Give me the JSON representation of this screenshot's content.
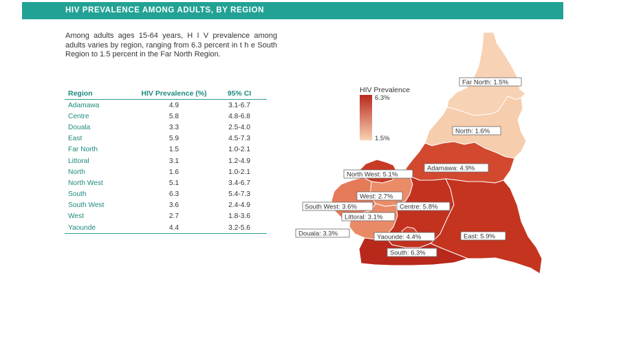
{
  "header": {
    "title": "HIV PREVALENCE AMONG ADULTS, BY REGION"
  },
  "intro": {
    "text": "Among adults ages 15-64 years, H I V prevalence among adults varies by region, ranging from 6.3 percent in t h e South Region to 1.5 percent in the Far North Region."
  },
  "table": {
    "headers": {
      "region": "Region",
      "prevalence": "HIV Prevalence (%)",
      "ci": "95% CI"
    },
    "rows": [
      {
        "region": "Adamawa",
        "prevalence": "4.9",
        "ci": "3.1-6.7"
      },
      {
        "region": "Centre",
        "prevalence": "5.8",
        "ci": "4.8-6.8"
      },
      {
        "region": "Douala",
        "prevalence": "3.3",
        "ci": "2.5-4.0"
      },
      {
        "region": "East",
        "prevalence": "5.9",
        "ci": "4.5-7.3"
      },
      {
        "region": "Far North",
        "prevalence": "1.5",
        "ci": "1.0-2.1"
      },
      {
        "region": "Littoral",
        "prevalence": "3.1",
        "ci": "1.2-4.9"
      },
      {
        "region": "North",
        "prevalence": "1.6",
        "ci": "1.0-2.1"
      },
      {
        "region": "North West",
        "prevalence": "5.1",
        "ci": "3.4-6.7"
      },
      {
        "region": "South",
        "prevalence": "6.3",
        "ci": "5.4-7.3"
      },
      {
        "region": "South West",
        "prevalence": "3.6",
        "ci": "2.4-4.9"
      },
      {
        "region": "West",
        "prevalence": "2.7",
        "ci": "1.8-3.6"
      },
      {
        "region": "Yaounde",
        "prevalence": "4.4",
        "ci": "3.2-5.6"
      }
    ]
  },
  "legend": {
    "title": "HIV Prevalence",
    "max_label": "6.3%",
    "min_label": "1.5%",
    "max_color": "#b8291c",
    "min_color": "#f8d2b4"
  },
  "map_labels": {
    "far_north": "Far North: 1.5%",
    "north": "North: 1.6%",
    "adamawa": "Adamawa: 4.9%",
    "north_west": "North West: 5.1%",
    "west": "West: 2.7%",
    "south_west": "South West: 3.6%",
    "centre": "Centre: 5.8%",
    "littoral": "Littoral: 3.1%",
    "douala": "Douala: 3.3%",
    "yaounde": "Yaounde: 4.4%",
    "east": "East: 5.9%",
    "south": "South: 6.3%"
  },
  "region_colors": {
    "far_north": "#f8d2b4",
    "north": "#f6cdad",
    "adamawa": "#d2492f",
    "north_west": "#c93a26",
    "west": "#ea8c68",
    "south_west": "#e57a58",
    "littoral": "#e98a66",
    "centre": "#c2321f",
    "east": "#c4341f",
    "south": "#b8291c",
    "yaounde": "#d04530"
  }
}
